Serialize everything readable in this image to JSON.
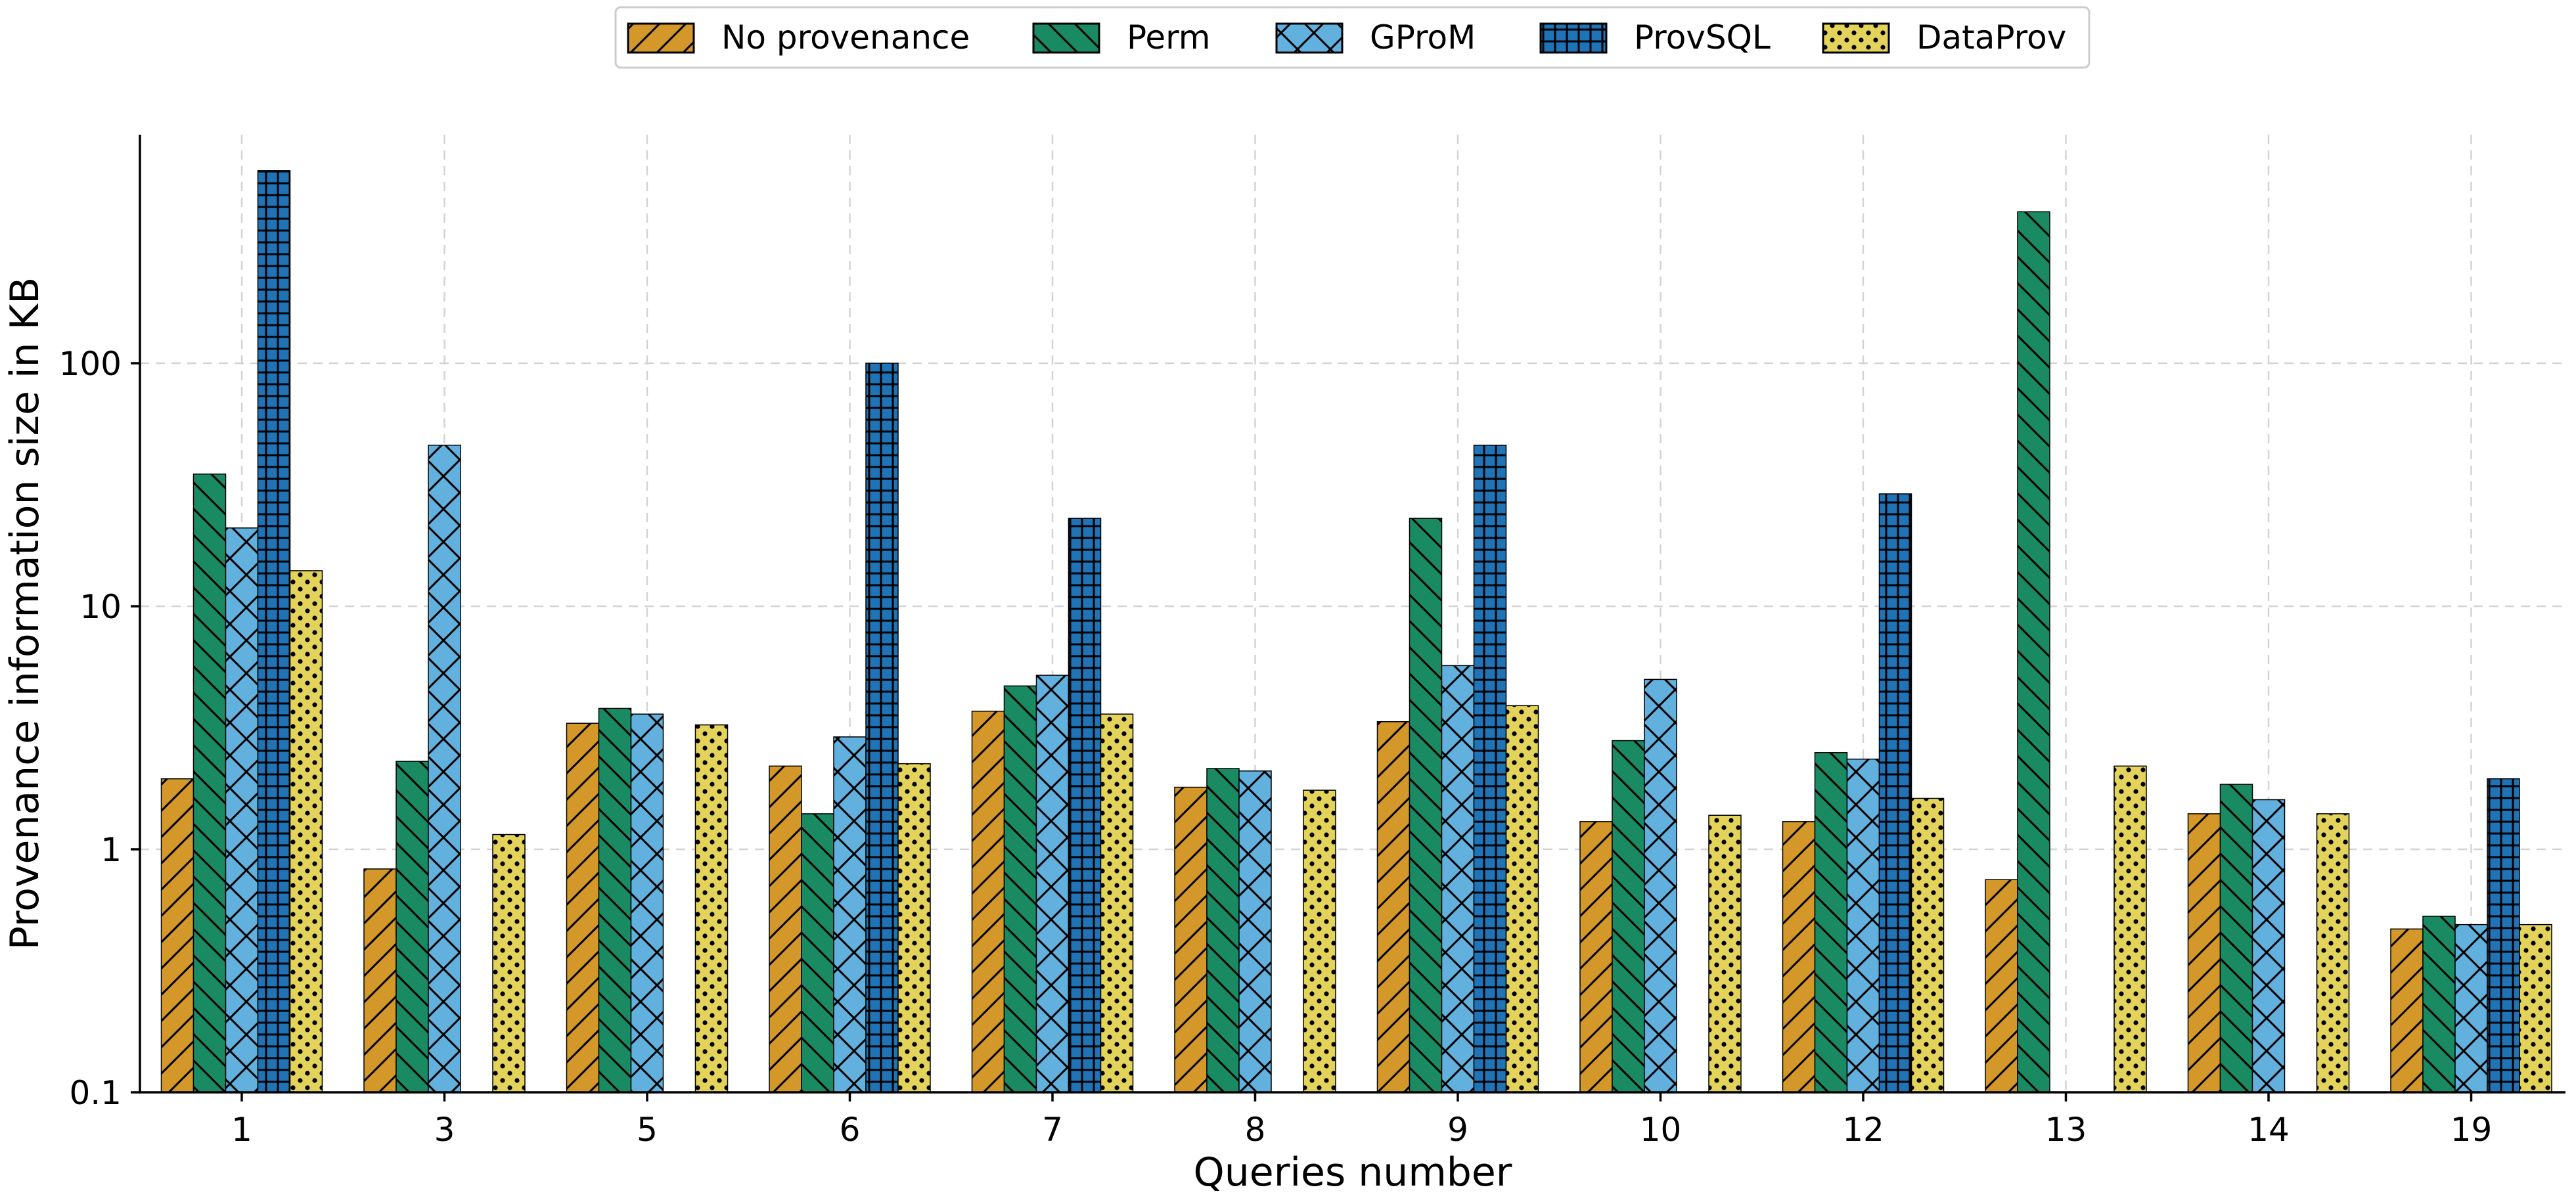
{
  "chart_data": {
    "type": "bar",
    "xlabel": "Queries number",
    "ylabel": "Provenance information size in KB",
    "yscale": "log",
    "ylim": [
      0.1,
      800
    ],
    "yticks": [
      0.1,
      1,
      10,
      100
    ],
    "ytick_labels": [
      "0.1",
      "1",
      "10",
      "100"
    ],
    "grid": true,
    "legend_position": "top-center",
    "categories": [
      "1",
      "3",
      "5",
      "6",
      "7",
      "8",
      "9",
      "10",
      "12",
      "13",
      "14",
      "19"
    ],
    "series": [
      {
        "name": "No provenance",
        "color": "#d4972a",
        "hatch": "diagonal-forward",
        "values": [
          1.95,
          0.83,
          3.3,
          2.2,
          3.7,
          1.8,
          3.35,
          1.3,
          1.3,
          0.75,
          1.4,
          0.47
        ]
      },
      {
        "name": "Perm",
        "color": "#1a8a63",
        "hatch": "diagonal-back",
        "values": [
          35,
          2.3,
          3.8,
          1.4,
          4.7,
          2.15,
          23,
          2.8,
          2.5,
          420,
          1.85,
          0.53
        ]
      },
      {
        "name": "GProM",
        "color": "#62b0de",
        "hatch": "crosshatch",
        "values": [
          21,
          46,
          3.6,
          2.9,
          5.2,
          2.1,
          5.7,
          5.0,
          2.35,
          null,
          1.6,
          0.49
        ]
      },
      {
        "name": "ProvSQL",
        "color": "#1f73b7",
        "hatch": "grid",
        "values": [
          620,
          null,
          null,
          100,
          23,
          null,
          46,
          null,
          29,
          null,
          null,
          1.95
        ]
      },
      {
        "name": "DataProv",
        "color": "#e3d35a",
        "hatch": "dots",
        "values": [
          14,
          1.15,
          3.25,
          2.25,
          3.6,
          1.75,
          3.9,
          1.38,
          1.62,
          2.2,
          1.4,
          0.49
        ]
      }
    ]
  }
}
